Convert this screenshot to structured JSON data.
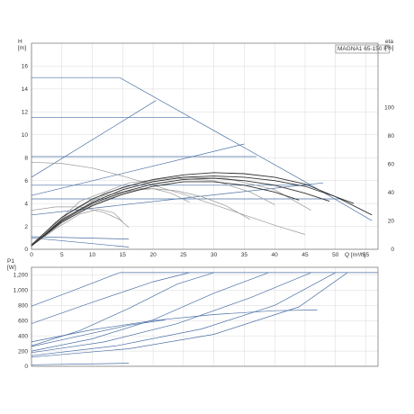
{
  "chart_data": [
    {
      "type": "line",
      "title": "MAGNA1 65-150 F",
      "xlabel": "Q [m³/h]",
      "ylabel_left": "H\n[m]",
      "ylabel_right": "eta\n[%]",
      "xlim": [
        0,
        57
      ],
      "ylim": [
        0,
        18
      ],
      "ylim_right": [
        0,
        145
      ],
      "x_ticks": [
        "0",
        "5",
        "10",
        "15",
        "20",
        "25",
        "30",
        "35",
        "40",
        "45",
        "50",
        "55"
      ],
      "y_ticks": [
        "0",
        "2",
        "4",
        "6",
        "8",
        "10",
        "12",
        "14",
        "16"
      ],
      "y_ticks_right": [
        "0",
        "20",
        "40",
        "60",
        "80",
        "100"
      ],
      "grid": true,
      "series": [
        {
          "axis": "H",
          "color": "#4a6fa5",
          "points": [
            [
              0,
              15
            ],
            [
              14.5,
              15
            ],
            [
              46,
              5.6
            ],
            [
              56,
              2.5
            ]
          ]
        },
        {
          "axis": "H",
          "color": "#4a6fa5",
          "points": [
            [
              0,
              11.5
            ],
            [
              26,
              11.5
            ]
          ]
        },
        {
          "axis": "H",
          "color": "#4a6fa5",
          "points": [
            [
              0,
              8.1
            ],
            [
              37,
              8.1
            ]
          ]
        },
        {
          "axis": "H",
          "color": "#4a6fa5",
          "points": [
            [
              0,
              5.6
            ],
            [
              46,
              5.6
            ]
          ]
        },
        {
          "axis": "H",
          "color": "#4a6fa5",
          "points": [
            [
              0,
              4.4
            ],
            [
              51,
              4.4
            ]
          ]
        },
        {
          "axis": "H",
          "color": "#4a6fa5",
          "points": [
            [
              0,
              1.1
            ],
            [
              16,
              0.9
            ]
          ]
        },
        {
          "axis": "H",
          "color": "#4a6fa5",
          "points": [
            [
              0,
              6.3
            ],
            [
              20.5,
              13
            ]
          ]
        },
        {
          "axis": "H",
          "color": "#4a6fa5",
          "points": [
            [
              0,
              4.7
            ],
            [
              35,
              9.2
            ]
          ]
        },
        {
          "axis": "H",
          "color": "#4a6fa5",
          "points": [
            [
              0,
              3
            ],
            [
              48,
              5.8
            ]
          ]
        },
        {
          "axis": "H",
          "color": "#4a6fa5",
          "points": [
            [
              0,
              1
            ],
            [
              16,
              0.2
            ]
          ]
        },
        {
          "axis": "H",
          "color": "#999999",
          "points": [
            [
              0,
              7.6
            ],
            [
              5,
              7.5
            ],
            [
              10,
              7.1
            ],
            [
              15,
              6.4
            ],
            [
              20,
              5.6
            ],
            [
              25,
              4.8
            ],
            [
              30,
              3.9
            ],
            [
              35,
              3
            ],
            [
              40,
              2.1
            ],
            [
              45,
              1.3
            ]
          ]
        },
        {
          "axis": "H",
          "color": "#999999",
          "points": [
            [
              0,
              3.4
            ],
            [
              4,
              3.7
            ],
            [
              8,
              3.7
            ],
            [
              12,
              3.2
            ],
            [
              14.5,
              2.6
            ],
            [
              16,
              1.9
            ]
          ]
        },
        {
          "axis": "H",
          "color": "#999999",
          "points": [
            [
              0,
              0.3
            ],
            [
              4,
              2.4
            ],
            [
              8,
              3.8
            ],
            [
              12,
              4.7
            ],
            [
              16,
              5.1
            ],
            [
              20,
              5.3
            ],
            [
              24,
              5.1
            ],
            [
              28,
              4.6
            ],
            [
              32,
              3.8
            ],
            [
              36,
              2.6
            ]
          ]
        },
        {
          "axis": "H",
          "color": "#999999",
          "points": [
            [
              0,
              0.4
            ],
            [
              8,
              4.2
            ],
            [
              16,
              5.8
            ],
            [
              24,
              6.3
            ],
            [
              32,
              6.2
            ],
            [
              40,
              5.2
            ],
            [
              46,
              3.4
            ]
          ]
        },
        {
          "axis": "H",
          "color": "#999999",
          "points": [
            [
              0,
              0.3
            ],
            [
              4,
              1.8
            ],
            [
              8,
              3.1
            ],
            [
              11,
              3.5
            ],
            [
              13.5,
              3.2
            ],
            [
              15,
              2.4
            ]
          ]
        },
        {
          "axis": "H",
          "color": "#999999",
          "points": [
            [
              0,
              0.3
            ],
            [
              5,
              2.3
            ],
            [
              10,
              3.9
            ],
            [
              15,
              4.9
            ],
            [
              18,
              5.3
            ],
            [
              20,
              5.3
            ],
            [
              23,
              4.9
            ],
            [
              26,
              4.1
            ]
          ]
        },
        {
          "axis": "H",
          "color": "#999999",
          "points": [
            [
              0,
              0.3
            ],
            [
              6,
              3.1
            ],
            [
              12,
              4.9
            ],
            [
              18,
              5.8
            ],
            [
              24,
              6.2
            ],
            [
              30,
              6.0
            ],
            [
              36,
              5.0
            ],
            [
              40,
              3.9
            ]
          ]
        },
        {
          "axis": "H",
          "color": "#333333",
          "points": [
            [
              0,
              0.4
            ],
            [
              5,
              2.8
            ],
            [
              10,
              4.4
            ],
            [
              15,
              5.4
            ],
            [
              20,
              6.1
            ],
            [
              25,
              6.5
            ],
            [
              30,
              6.7
            ],
            [
              35,
              6.6
            ],
            [
              40,
              6.3
            ],
            [
              45,
              5.7
            ],
            [
              50,
              4.6
            ],
            [
              56,
              3
            ]
          ]
        },
        {
          "axis": "H",
          "color": "#333333",
          "points": [
            [
              0,
              0.3
            ],
            [
              5,
              2.6
            ],
            [
              10,
              4.1
            ],
            [
              15,
              5.2
            ],
            [
              20,
              5.9
            ],
            [
              25,
              6.3
            ],
            [
              30,
              6.4
            ],
            [
              35,
              6.3
            ],
            [
              40,
              6.0
            ],
            [
              45,
              5.5
            ],
            [
              50,
              4.6
            ],
            [
              53,
              4
            ]
          ]
        },
        {
          "axis": "H",
          "color": "#333333",
          "points": [
            [
              0,
              0.3
            ],
            [
              5,
              2.5
            ],
            [
              10,
              4.0
            ],
            [
              15,
              5.0
            ],
            [
              20,
              5.7
            ],
            [
              25,
              6.1
            ],
            [
              30,
              6.2
            ],
            [
              35,
              6.0
            ],
            [
              40,
              5.6
            ],
            [
              45,
              4.9
            ],
            [
              49,
              4.2
            ]
          ]
        },
        {
          "axis": "H",
          "color": "#333333",
          "points": [
            [
              0,
              0.3
            ],
            [
              5,
              2.4
            ],
            [
              10,
              3.8
            ],
            [
              15,
              4.8
            ],
            [
              20,
              5.5
            ],
            [
              25,
              5.9
            ],
            [
              30,
              5.9
            ],
            [
              35,
              5.6
            ],
            [
              40,
              5.0
            ],
            [
              44,
              4.3
            ]
          ]
        }
      ]
    },
    {
      "type": "line",
      "title": "",
      "xlabel": "",
      "ylabel": "P1\n[W]",
      "xlim": [
        0,
        57
      ],
      "ylim": [
        0,
        1300
      ],
      "y_ticks": [
        "0",
        "200",
        "400",
        "600",
        "800",
        "1,000",
        "1,200"
      ],
      "grid": true,
      "series": [
        {
          "color": "#4a6fa5",
          "points": [
            [
              14.5,
              1230
            ],
            [
              57,
              1230
            ]
          ]
        },
        {
          "color": "#4a6fa5",
          "points": [
            [
              0,
              790
            ],
            [
              7,
              1000
            ],
            [
              14.5,
              1230
            ]
          ]
        },
        {
          "color": "#4a6fa5",
          "points": [
            [
              0,
              560
            ],
            [
              10,
              840
            ],
            [
              20,
              1110
            ],
            [
              26,
              1230
            ]
          ]
        },
        {
          "color": "#4a6fa5",
          "points": [
            [
              0,
              270
            ],
            [
              8,
              470
            ],
            [
              16,
              760
            ],
            [
              24,
              1080
            ],
            [
              30,
              1230
            ]
          ]
        },
        {
          "color": "#4a6fa5",
          "points": [
            [
              0,
              200
            ],
            [
              10,
              360
            ],
            [
              20,
              610
            ],
            [
              30,
              960
            ],
            [
              39,
              1230
            ]
          ]
        },
        {
          "color": "#4a6fa5",
          "points": [
            [
              0,
              180
            ],
            [
              12,
              320
            ],
            [
              24,
              560
            ],
            [
              36,
              900
            ],
            [
              46,
              1230
            ]
          ]
        },
        {
          "color": "#4a6fa5",
          "points": [
            [
              0,
              140
            ],
            [
              14,
              270
            ],
            [
              28,
              490
            ],
            [
              40,
              800
            ],
            [
              50,
              1230
            ]
          ]
        },
        {
          "color": "#4a6fa5",
          "points": [
            [
              0,
              120
            ],
            [
              16,
              230
            ],
            [
              30,
              420
            ],
            [
              44,
              780
            ],
            [
              52,
              1230
            ]
          ]
        },
        {
          "color": "#4a6fa5",
          "points": [
            [
              0,
              320
            ],
            [
              10,
              480
            ],
            [
              20,
              600
            ],
            [
              30,
              680
            ],
            [
              40,
              730
            ],
            [
              47,
              740
            ]
          ]
        },
        {
          "color": "#4a6fa5",
          "points": [
            [
              0,
              260
            ],
            [
              8,
              400
            ],
            [
              16,
              540
            ],
            [
              22,
              610
            ]
          ]
        },
        {
          "color": "#4a6fa5",
          "points": [
            [
              0,
              20
            ],
            [
              8,
              30
            ],
            [
              16,
              40
            ]
          ]
        }
      ]
    }
  ]
}
